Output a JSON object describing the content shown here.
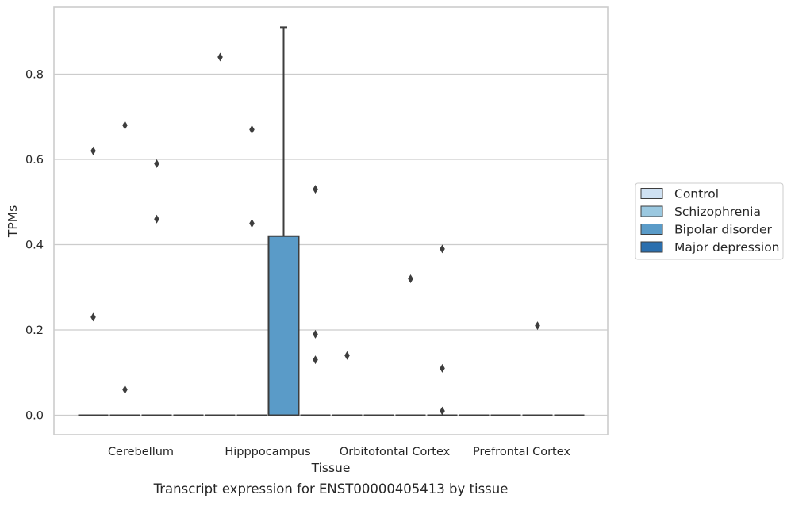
{
  "chart_data": {
    "type": "box",
    "title": "",
    "caption": "Transcript expression for ENST00000405413 by tissue",
    "xlabel": "Tissue",
    "ylabel": "TPMs",
    "ylim": [
      -0.045,
      0.955
    ],
    "yticks": [
      0.0,
      0.2,
      0.4,
      0.6,
      0.8
    ],
    "ytick_labels": [
      "0.0",
      "0.2",
      "0.4",
      "0.6",
      "0.8"
    ],
    "grid": "horizontal",
    "legend_position": "right",
    "categories": [
      "Cerebellum",
      "Hipppocampus",
      "Orbitofontal Cortex",
      "Prefrontal Cortex"
    ],
    "series": [
      {
        "name": "Control",
        "color": "#cfe1f2",
        "boxes": [
          {
            "q1": 0.0,
            "median": 0.0,
            "q3": 0.0,
            "whisker_low": 0.0,
            "whisker_high": 0.0,
            "outliers": [
              0.23,
              0.62
            ]
          },
          {
            "q1": 0.0,
            "median": 0.0,
            "q3": 0.0,
            "whisker_low": 0.0,
            "whisker_high": 0.0,
            "outliers": [
              0.84
            ]
          },
          {
            "q1": 0.0,
            "median": 0.0,
            "q3": 0.0,
            "whisker_low": 0.0,
            "whisker_high": 0.0,
            "outliers": [
              0.14
            ]
          },
          {
            "q1": 0.0,
            "median": 0.0,
            "q3": 0.0,
            "whisker_low": 0.0,
            "whisker_high": 0.0,
            "outliers": []
          }
        ]
      },
      {
        "name": "Schizophrenia",
        "color": "#9ac8e0",
        "boxes": [
          {
            "q1": 0.0,
            "median": 0.0,
            "q3": 0.0,
            "whisker_low": 0.0,
            "whisker_high": 0.0,
            "outliers": [
              0.68,
              0.06
            ]
          },
          {
            "q1": 0.0,
            "median": 0.0,
            "q3": 0.0,
            "whisker_low": 0.0,
            "whisker_high": 0.0,
            "outliers": [
              0.67,
              0.45
            ]
          },
          {
            "q1": 0.0,
            "median": 0.0,
            "q3": 0.0,
            "whisker_low": 0.0,
            "whisker_high": 0.0,
            "outliers": []
          },
          {
            "q1": 0.0,
            "median": 0.0,
            "q3": 0.0,
            "whisker_low": 0.0,
            "whisker_high": 0.0,
            "outliers": []
          }
        ]
      },
      {
        "name": "Bipolar disorder",
        "color": "#5a9bc8",
        "boxes": [
          {
            "q1": 0.0,
            "median": 0.0,
            "q3": 0.0,
            "whisker_low": 0.0,
            "whisker_high": 0.0,
            "outliers": [
              0.59,
              0.46
            ]
          },
          {
            "q1": 0.0,
            "median": 0.0,
            "q3": 0.42,
            "whisker_low": 0.0,
            "whisker_high": 0.91,
            "outliers": []
          },
          {
            "q1": 0.0,
            "median": 0.0,
            "q3": 0.0,
            "whisker_low": 0.0,
            "whisker_high": 0.0,
            "outliers": [
              0.32
            ]
          },
          {
            "q1": 0.0,
            "median": 0.0,
            "q3": 0.0,
            "whisker_low": 0.0,
            "whisker_high": 0.0,
            "outliers": [
              0.21
            ]
          }
        ]
      },
      {
        "name": "Major depression",
        "color": "#2b6fae",
        "boxes": [
          {
            "q1": 0.0,
            "median": 0.0,
            "q3": 0.0,
            "whisker_low": 0.0,
            "whisker_high": 0.0,
            "outliers": []
          },
          {
            "q1": 0.0,
            "median": 0.0,
            "q3": 0.0,
            "whisker_low": 0.0,
            "whisker_high": 0.0,
            "outliers": [
              0.53,
              0.19,
              0.13
            ]
          },
          {
            "q1": 0.0,
            "median": 0.0,
            "q3": 0.0,
            "whisker_low": 0.0,
            "whisker_high": 0.0,
            "outliers": [
              0.39,
              0.11,
              0.01
            ]
          },
          {
            "q1": 0.0,
            "median": 0.0,
            "q3": 0.0,
            "whisker_low": 0.0,
            "whisker_high": 0.0,
            "outliers": []
          }
        ]
      }
    ]
  }
}
